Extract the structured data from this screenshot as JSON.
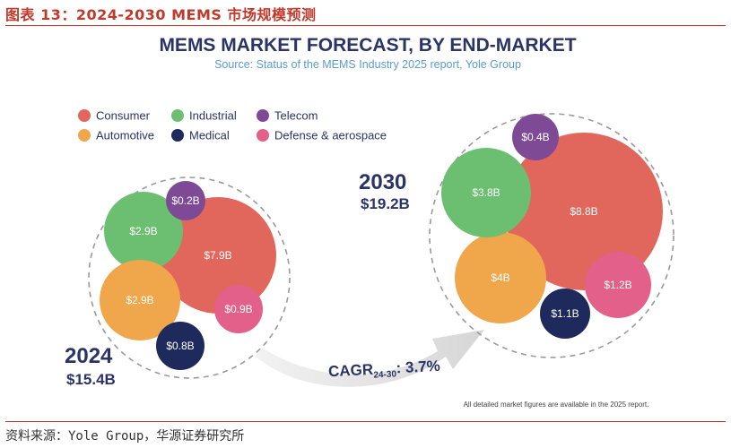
{
  "header": {
    "caption": "图表 13：2024-2030 MEMS 市场规模预测",
    "source_note": "资料来源：Yole Group，华源证券研究所"
  },
  "chart_data": {
    "type": "bubble",
    "title": "MEMS MARKET FORECAST, BY END-MARKET",
    "subtitle": "Source: Status of the MEMS Industry 2025 report, Yole Group",
    "legend": [
      {
        "name": "Consumer",
        "color": "#e1665c"
      },
      {
        "name": "Industrial",
        "color": "#6cbf70"
      },
      {
        "name": "Telecom",
        "color": "#7e4a96"
      },
      {
        "name": "Automotive",
        "color": "#f0a64a"
      },
      {
        "name": "Medical",
        "color": "#1f2a5c"
      },
      {
        "name": "Defense & aerospace",
        "color": "#e2608a"
      }
    ],
    "groups": [
      {
        "year": "2024",
        "total": "$15.4B",
        "bubbles": [
          {
            "segment": "Consumer",
            "label": "$7.9B",
            "value": 7.9
          },
          {
            "segment": "Industrial",
            "label": "$2.9B",
            "value": 2.9
          },
          {
            "segment": "Automotive",
            "label": "$2.9B",
            "value": 2.9
          },
          {
            "segment": "Defense & aerospace",
            "label": "$0.9B",
            "value": 0.9
          },
          {
            "segment": "Medical",
            "label": "$0.8B",
            "value": 0.8
          },
          {
            "segment": "Telecom",
            "label": "$0.2B",
            "value": 0.2
          }
        ]
      },
      {
        "year": "2030",
        "total": "$19.2B",
        "bubbles": [
          {
            "segment": "Consumer",
            "label": "$8.8B",
            "value": 8.8
          },
          {
            "segment": "Automotive",
            "label": "$4B",
            "value": 4.0
          },
          {
            "segment": "Industrial",
            "label": "$3.8B",
            "value": 3.8
          },
          {
            "segment": "Defense & aerospace",
            "label": "$1.2B",
            "value": 1.2
          },
          {
            "segment": "Medical",
            "label": "$1.1B",
            "value": 1.1
          },
          {
            "segment": "Telecom",
            "label": "$0.4B",
            "value": 0.4
          }
        ]
      }
    ],
    "cagr": {
      "prefix": "CAGR",
      "period": "24-30",
      "value": ": 3.7%"
    },
    "footnote": "All detailed market figures are available in the 2025 report."
  }
}
